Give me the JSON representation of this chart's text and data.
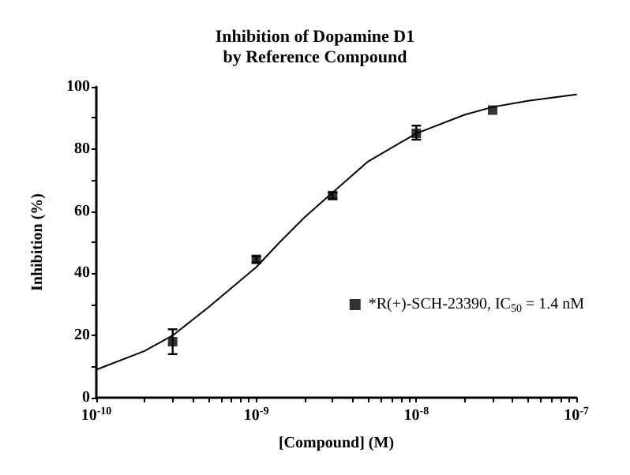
{
  "chart_data": {
    "type": "scatter",
    "title": "Inhibition of Dopamine D1\nby Reference Compound",
    "xlabel": "[Compound] (M)",
    "ylabel": "Inhibition (%)",
    "log": "x",
    "grid": false,
    "legend": "right",
    "marker": "square",
    "xlim": [
      1e-10,
      1e-07
    ],
    "ylim": [
      0,
      100
    ],
    "xticks": [
      {
        "value": 1e-10,
        "label": "10$^{-10}$"
      },
      {
        "value": 2e-10,
        "label": null
      },
      {
        "value": 3e-10,
        "label": null
      },
      {
        "value": 4e-10,
        "label": null
      },
      {
        "value": 5e-10,
        "label": null
      },
      {
        "value": 6e-10,
        "label": null
      },
      {
        "value": 7e-10,
        "label": null
      },
      {
        "value": 8e-10,
        "label": null
      },
      {
        "value": 9e-10,
        "label": null
      },
      {
        "value": 1e-09,
        "label": "10$^{-9}$"
      },
      {
        "value": 2e-09,
        "label": null
      },
      {
        "value": 3e-09,
        "label": null
      },
      {
        "value": 4e-09,
        "label": null
      },
      {
        "value": 5e-09,
        "label": null
      },
      {
        "value": 6e-09,
        "label": null
      },
      {
        "value": 7e-09,
        "label": null
      },
      {
        "value": 8e-09,
        "label": null
      },
      {
        "value": 9e-09,
        "label": null
      },
      {
        "value": 1e-08,
        "label": "10$^{-8}$"
      },
      {
        "value": 2e-08,
        "label": null
      },
      {
        "value": 3e-08,
        "label": null
      },
      {
        "value": 4e-08,
        "label": null
      },
      {
        "value": 5e-08,
        "label": null
      },
      {
        "value": 6e-08,
        "label": null
      },
      {
        "value": 7e-08,
        "label": null
      },
      {
        "value": 8e-08,
        "label": null
      },
      {
        "value": 9e-08,
        "label": null
      },
      {
        "value": 1e-07,
        "label": "10$^{-7}$"
      }
    ],
    "yticks": [
      0,
      {
        "value": 10,
        "label": null
      },
      20,
      {
        "value": 30,
        "label": null
      },
      40,
      {
        "value": 50,
        "label": null
      },
      60,
      {
        "value": 70,
        "label": null
      },
      80,
      {
        "value": 90,
        "label": null
      },
      100
    ],
    "series": [
      {
        "name": "*R(+)-SCH-23390, IC$_{50}$ = 1.4 nM",
        "color": "#000000",
        "x": [
          3e-10,
          1e-09,
          3e-09,
          1e-08,
          3e-08
        ],
        "values": [
          18,
          44.5,
          65,
          85,
          92.5
        ],
        "errors": [
          [
            14,
            22
          ],
          [
            43.5,
            45.5
          ],
          [
            64,
            66
          ],
          [
            83,
            87.5
          ],
          null
        ]
      },
      {
        "type": "line",
        "color": "#000000",
        "marker": "none",
        "line_style": "solid",
        "x": [
          1e-10,
          2e-10,
          3e-10,
          5e-10,
          1e-09,
          1.4e-09,
          2e-09,
          3e-09,
          5e-09,
          1e-08,
          2e-08,
          3e-08,
          5e-08,
          1e-07
        ],
        "values": [
          9,
          15,
          20,
          29,
          42,
          50,
          58,
          66,
          76,
          85,
          91,
          93.5,
          95.5,
          97.5
        ]
      }
    ]
  }
}
